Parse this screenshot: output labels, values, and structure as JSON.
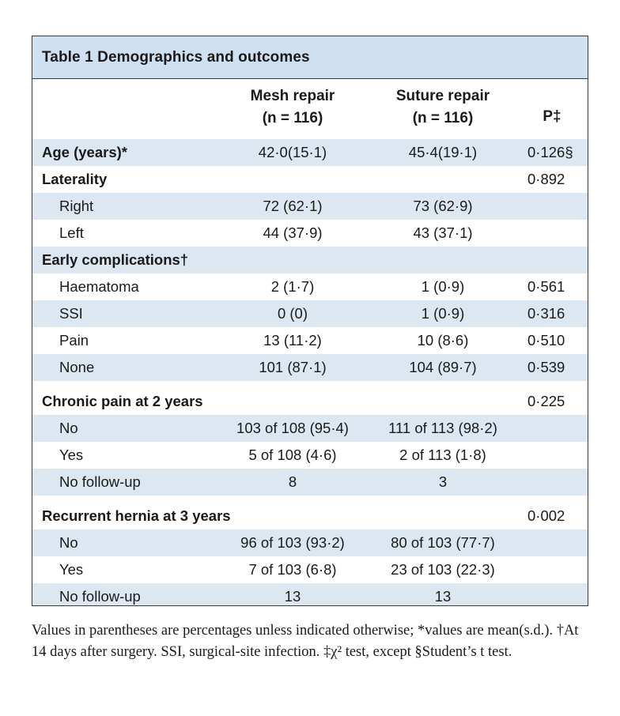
{
  "table": {
    "title": "Table 1  Demographics and outcomes",
    "columns": {
      "mesh_line1": "Mesh repair",
      "mesh_line2": "(n = 116)",
      "suture_line1": "Suture repair",
      "suture_line2": "(n = 116)",
      "p": "P‡"
    },
    "rows": [
      {
        "label": "Age (years)*",
        "mesh": "42·0(15·1)",
        "suture": "45·4(19·1)",
        "p": "0·126§"
      },
      {
        "label": "Laterality",
        "mesh": "",
        "suture": "",
        "p": "0·892"
      },
      {
        "label": "Right",
        "mesh": "72 (62·1)",
        "suture": "73 (62·9)",
        "p": ""
      },
      {
        "label": "Left",
        "mesh": "44 (37·9)",
        "suture": "43 (37·1)",
        "p": ""
      },
      {
        "label": "Early complications†",
        "mesh": "",
        "suture": "",
        "p": ""
      },
      {
        "label": "Haematoma",
        "mesh": "2 (1·7)",
        "suture": "1 (0·9)",
        "p": "0·561"
      },
      {
        "label": "SSI",
        "mesh": "0 (0)",
        "suture": "1 (0·9)",
        "p": "0·316"
      },
      {
        "label": "Pain",
        "mesh": "13 (11·2)",
        "suture": "10 (8·6)",
        "p": "0·510"
      },
      {
        "label": "None",
        "mesh": "101 (87·1)",
        "suture": "104 (89·7)",
        "p": "0·539"
      },
      {
        "label": "Chronic pain at 2 years",
        "mesh": "",
        "suture": "",
        "p": "0·225"
      },
      {
        "label": "No",
        "mesh": "103 of 108 (95·4)",
        "suture": "111 of 113 (98·2)",
        "p": ""
      },
      {
        "label": "Yes",
        "mesh": "5 of 108 (4·6)",
        "suture": "2 of 113 (1·8)",
        "p": ""
      },
      {
        "label": "No follow-up",
        "mesh": "8",
        "suture": "3",
        "p": ""
      },
      {
        "label": "Recurrent hernia at 3 years",
        "mesh": "",
        "suture": "",
        "p": "0·002"
      },
      {
        "label": "No",
        "mesh": "96 of 103 (93·2)",
        "suture": "80 of 103 (77·7)",
        "p": ""
      },
      {
        "label": "Yes",
        "mesh": "7 of 103 (6·8)",
        "suture": "23 of 103 (22·3)",
        "p": ""
      },
      {
        "label": "No follow-up",
        "mesh": "13",
        "suture": "13",
        "p": ""
      }
    ]
  },
  "footnote": "Values in parentheses are percentages unless indicated otherwise; *values are mean(s.d.). †At 14 days after surgery. SSI, surgical-site infection. ‡χ² test, except §Student’s t test.",
  "colors": {
    "title_bg": "#cfe0f0",
    "stripe_bg": "#dce7f2",
    "border": "#3a3a3a"
  }
}
